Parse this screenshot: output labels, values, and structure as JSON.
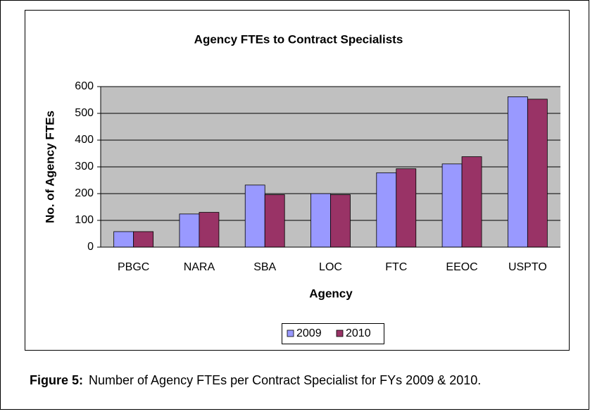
{
  "chart_data": {
    "type": "bar",
    "title": "Agency FTEs to Contract Specialists",
    "x_label": "Agency",
    "y_label": "No. of Agency FTEs",
    "categories": [
      "PBGC",
      "NARA",
      "SBA",
      "LOC",
      "FTC",
      "EEOC",
      "USPTO"
    ],
    "series": [
      {
        "name": "2009",
        "color": "#9999ff",
        "values": [
          58,
          124,
          232,
          200,
          278,
          311,
          562
        ]
      },
      {
        "name": "2010",
        "color": "#993366",
        "values": [
          58,
          130,
          196,
          196,
          293,
          338,
          553
        ]
      }
    ],
    "ylim": [
      0,
      600
    ],
    "yticks": [
      0,
      100,
      200,
      300,
      400,
      500,
      600
    ],
    "grid": true,
    "plot_background": "#c0c0c0",
    "legend": "bottom"
  },
  "caption": {
    "label": "Figure 5:",
    "text": "Number of Agency FTEs per Contract Specialist for FYs 2009 & 2010."
  }
}
